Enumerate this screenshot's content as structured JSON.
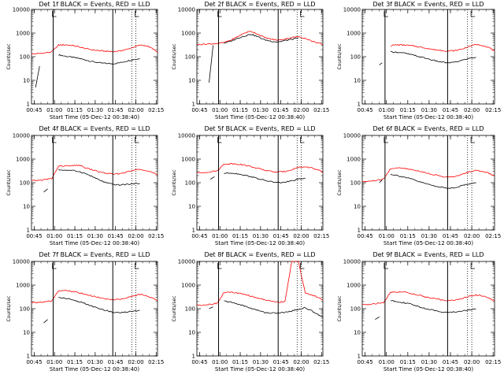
{
  "figure": {
    "x_ticks": [
      "00:45",
      "01:00",
      "01:15",
      "01:30",
      "01:45",
      "02:00",
      "02:15"
    ],
    "y_ticks": [
      "1",
      "10",
      "100",
      "1000",
      "10000"
    ],
    "ylabel": "Counts/sec",
    "xlabel": "Start Time (05-Dec-12 00:38:40)",
    "colors": {
      "events": "#000000",
      "lld": "#ff0000"
    }
  },
  "chart_data": [
    {
      "type": "line",
      "title": "Det 1f BLACK = Events, RED = LLD",
      "xlabel": "Start Time (05-Dec-12 00:38:40)",
      "ylabel": "Counts/sec",
      "ylim": [
        1,
        10000
      ],
      "ylog": true,
      "x": [
        "00:43",
        "00:48",
        "00:53",
        "00:58",
        "01:03",
        "01:08",
        "01:13",
        "01:18",
        "01:23",
        "01:28",
        "01:33",
        "01:38",
        "01:43",
        "01:48",
        "01:53",
        "01:58",
        "02:03",
        "02:08",
        "02:13",
        "02:16"
      ],
      "series": [
        {
          "name": "Events",
          "color": "#000000",
          "values": [
            null,
            null,
            null,
            null,
            120,
            105,
            95,
            85,
            72,
            62,
            55,
            52,
            50,
            55,
            65,
            75,
            82,
            null,
            null,
            null
          ]
        },
        {
          "name": "LLD",
          "color": "#ff0000",
          "values": [
            130,
            135,
            145,
            160,
            310,
            320,
            300,
            260,
            220,
            195,
            180,
            170,
            165,
            175,
            200,
            250,
            310,
            290,
            210,
            150
          ]
        }
      ],
      "markers": {
        "x": [
          "00:46",
          "00:49"
        ],
        "values": [
          5,
          40
        ]
      }
    },
    {
      "type": "line",
      "title": "Det 2f BLACK = Events, RED = LLD",
      "xlabel": "Start Time (05-Dec-12 00:38:40)",
      "ylabel": "Counts/sec",
      "ylim": [
        1,
        10000
      ],
      "ylog": true,
      "x": [
        "00:43",
        "00:48",
        "00:53",
        "00:58",
        "01:03",
        "01:08",
        "01:13",
        "01:18",
        "01:23",
        "01:28",
        "01:33",
        "01:38",
        "01:43",
        "01:48",
        "01:53",
        "01:58",
        "02:03",
        "02:08",
        "02:13",
        "02:16"
      ],
      "series": [
        {
          "name": "Events",
          "color": "#000000",
          "values": [
            null,
            null,
            null,
            null,
            380,
            450,
            600,
            750,
            900,
            700,
            520,
            450,
            420,
            480,
            550,
            600,
            null,
            null,
            null,
            null
          ]
        },
        {
          "name": "LLD",
          "color": "#ff0000",
          "values": [
            330,
            340,
            350,
            360,
            400,
            500,
            700,
            1000,
            1200,
            900,
            650,
            550,
            500,
            560,
            650,
            700,
            600,
            450,
            380,
            320
          ]
        }
      ],
      "markers": {
        "x": [
          "00:52",
          "00:55"
        ],
        "values": [
          8,
          300
        ]
      }
    },
    {
      "type": "line",
      "title": "Det 3f BLACK = Events, RED = LLD",
      "xlabel": "Start Time (05-Dec-12 00:38:40)",
      "ylabel": "Counts/sec",
      "ylim": [
        1,
        10000
      ],
      "ylog": true,
      "x": [
        "00:43",
        "00:48",
        "00:53",
        "00:58",
        "01:03",
        "01:08",
        "01:13",
        "01:18",
        "01:23",
        "01:28",
        "01:33",
        "01:38",
        "01:43",
        "01:48",
        "01:53",
        "01:58",
        "02:03",
        "02:08",
        "02:13",
        "02:16"
      ],
      "series": [
        {
          "name": "Events",
          "color": "#000000",
          "values": [
            null,
            null,
            null,
            null,
            160,
            155,
            140,
            120,
            100,
            85,
            70,
            60,
            55,
            58,
            70,
            85,
            95,
            null,
            null,
            null
          ]
        },
        {
          "name": "LLD",
          "color": "#ff0000",
          "values": [
            null,
            null,
            null,
            null,
            300,
            320,
            310,
            290,
            260,
            230,
            200,
            185,
            175,
            180,
            210,
            270,
            330,
            300,
            230,
            170
          ]
        }
      ],
      "markers": {
        "x": [
          "00:55",
          "00:57"
        ],
        "values": [
          45,
          55
        ]
      }
    },
    {
      "type": "line",
      "title": "Det 4f BLACK = Events, RED = LLD",
      "xlabel": "Start Time (05-Dec-12 00:38:40)",
      "ylabel": "Counts/sec",
      "ylim": [
        1,
        10000
      ],
      "ylog": true,
      "x": [
        "00:43",
        "00:48",
        "00:53",
        "00:58",
        "01:03",
        "01:08",
        "01:13",
        "01:18",
        "01:23",
        "01:28",
        "01:33",
        "01:38",
        "01:43",
        "01:48",
        "01:53",
        "01:58",
        "02:03",
        "02:08",
        "02:13",
        "02:16"
      ],
      "series": [
        {
          "name": "Events",
          "color": "#000000",
          "values": [
            null,
            null,
            null,
            null,
            350,
            340,
            330,
            300,
            240,
            180,
            130,
            100,
            85,
            80,
            85,
            90,
            95,
            null,
            null,
            null
          ]
        },
        {
          "name": "LLD",
          "color": "#ff0000",
          "values": [
            120,
            125,
            135,
            150,
            500,
            520,
            510,
            560,
            420,
            350,
            290,
            250,
            230,
            240,
            280,
            330,
            380,
            330,
            260,
            210
          ]
        }
      ],
      "markers": {
        "x": [
          "00:52",
          "00:55"
        ],
        "values": [
          40,
          55
        ]
      }
    },
    {
      "type": "line",
      "title": "Det 5f BLACK = Events, RED = LLD",
      "xlabel": "Start Time (05-Dec-12 00:38:40)",
      "ylabel": "Counts/sec",
      "ylim": [
        1,
        10000
      ],
      "ylog": true,
      "x": [
        "00:43",
        "00:48",
        "00:53",
        "00:58",
        "01:03",
        "01:08",
        "01:13",
        "01:18",
        "01:23",
        "01:28",
        "01:33",
        "01:38",
        "01:43",
        "01:48",
        "01:53",
        "01:58",
        "02:03",
        "02:08",
        "02:13",
        "02:16"
      ],
      "series": [
        {
          "name": "Events",
          "color": "#000000",
          "values": [
            null,
            null,
            null,
            null,
            250,
            260,
            240,
            210,
            180,
            150,
            125,
            110,
            100,
            105,
            120,
            140,
            155,
            null,
            null,
            null
          ]
        },
        {
          "name": "LLD",
          "color": "#ff0000",
          "values": [
            260,
            270,
            290,
            320,
            600,
            640,
            620,
            560,
            480,
            400,
            340,
            300,
            280,
            300,
            360,
            450,
            470,
            420,
            330,
            270
          ]
        }
      ],
      "markers": {
        "x": [
          "00:53",
          "00:56"
        ],
        "values": [
          140,
          180
        ]
      }
    },
    {
      "type": "line",
      "title": "Det 6f BLACK = Events, RED = LLD",
      "xlabel": "Start Time (05-Dec-12 00:38:40)",
      "ylabel": "Counts/sec",
      "ylim": [
        1,
        10000
      ],
      "ylog": true,
      "x": [
        "00:43",
        "00:48",
        "00:53",
        "00:58",
        "01:03",
        "01:08",
        "01:13",
        "01:18",
        "01:23",
        "01:28",
        "01:33",
        "01:38",
        "01:43",
        "01:48",
        "01:53",
        "01:58",
        "02:03",
        "02:08",
        "02:13",
        "02:16"
      ],
      "series": [
        {
          "name": "Events",
          "color": "#000000",
          "values": [
            null,
            null,
            null,
            null,
            230,
            200,
            170,
            140,
            110,
            90,
            75,
            65,
            58,
            62,
            75,
            90,
            100,
            null,
            null,
            null
          ]
        },
        {
          "name": "LLD",
          "color": "#ff0000",
          "values": [
            110,
            115,
            125,
            140,
            400,
            420,
            400,
            360,
            310,
            260,
            220,
            190,
            170,
            180,
            220,
            290,
            330,
            300,
            240,
            190
          ]
        }
      ],
      "markers": {
        "x": [
          "00:55",
          "00:57"
        ],
        "values": [
          100,
          130
        ]
      }
    },
    {
      "type": "line",
      "title": "Det 7f BLACK = Events, RED = LLD",
      "xlabel": "Start Time (05-Dec-12 00:38:40)",
      "ylabel": "Counts/sec",
      "ylim": [
        1,
        10000
      ],
      "ylog": true,
      "x": [
        "00:43",
        "00:48",
        "00:53",
        "00:58",
        "01:03",
        "01:08",
        "01:13",
        "01:18",
        "01:23",
        "01:28",
        "01:33",
        "01:38",
        "01:43",
        "01:48",
        "01:53",
        "01:58",
        "02:03",
        "02:08",
        "02:13",
        "02:16"
      ],
      "series": [
        {
          "name": "Events",
          "color": "#000000",
          "values": [
            null,
            null,
            null,
            null,
            300,
            280,
            240,
            200,
            160,
            125,
            100,
            85,
            70,
            68,
            72,
            80,
            85,
            null,
            null,
            null
          ]
        },
        {
          "name": "LLD",
          "color": "#ff0000",
          "values": [
            180,
            185,
            195,
            210,
            560,
            580,
            540,
            480,
            400,
            340,
            290,
            260,
            240,
            250,
            290,
            350,
            400,
            350,
            280,
            220
          ]
        }
      ],
      "markers": {
        "x": [
          "00:52",
          "00:55"
        ],
        "values": [
          25,
          35
        ]
      }
    },
    {
      "type": "line",
      "title": "Det 8f BLACK = Events, RED = LLD",
      "xlabel": "Start Time (05-Dec-12 00:38:40)",
      "ylabel": "Counts/sec",
      "ylim": [
        1,
        10000
      ],
      "ylog": true,
      "x": [
        "00:43",
        "00:48",
        "00:53",
        "00:58",
        "01:03",
        "01:08",
        "01:13",
        "01:18",
        "01:23",
        "01:28",
        "01:33",
        "01:38",
        "01:43",
        "01:48",
        "01:53",
        "01:58",
        "02:03",
        "02:08",
        "02:13",
        "02:16"
      ],
      "series": [
        {
          "name": "Events",
          "color": "#000000",
          "values": [
            null,
            null,
            null,
            null,
            210,
            190,
            160,
            130,
            105,
            85,
            70,
            65,
            65,
            70,
            80,
            95,
            110,
            80,
            55,
            45
          ]
        },
        {
          "name": "LLD",
          "color": "#ff0000",
          "values": [
            140,
            145,
            155,
            170,
            480,
            500,
            460,
            400,
            340,
            280,
            240,
            210,
            190,
            200,
            10000,
            10000,
            450,
            380,
            290,
            230
          ]
        }
      ],
      "markers": {
        "x": [
          "00:52",
          "00:55"
        ],
        "values": [
          100,
          120
        ]
      }
    },
    {
      "type": "line",
      "title": "Det 9f BLACK = Events, RED = LLD",
      "xlabel": "Start Time (05-Dec-12 00:38:40)",
      "ylabel": "Counts/sec",
      "ylim": [
        1,
        10000
      ],
      "ylog": true,
      "x": [
        "00:43",
        "00:48",
        "00:53",
        "00:58",
        "01:03",
        "01:08",
        "01:13",
        "01:18",
        "01:23",
        "01:28",
        "01:33",
        "01:38",
        "01:43",
        "01:48",
        "01:53",
        "01:58",
        "02:03",
        "02:08",
        "02:13",
        "02:16"
      ],
      "series": [
        {
          "name": "Events",
          "color": "#000000",
          "values": [
            null,
            null,
            null,
            null,
            220,
            200,
            175,
            150,
            120,
            100,
            85,
            75,
            70,
            72,
            80,
            90,
            100,
            null,
            null,
            null
          ]
        },
        {
          "name": "LLD",
          "color": "#ff0000",
          "values": [
            150,
            155,
            165,
            180,
            500,
            520,
            490,
            430,
            370,
            310,
            270,
            240,
            220,
            230,
            270,
            330,
            380,
            340,
            270,
            210
          ]
        }
      ],
      "markers": {
        "x": [
          "00:52",
          "00:55"
        ],
        "values": [
          35,
          45
        ]
      }
    }
  ]
}
